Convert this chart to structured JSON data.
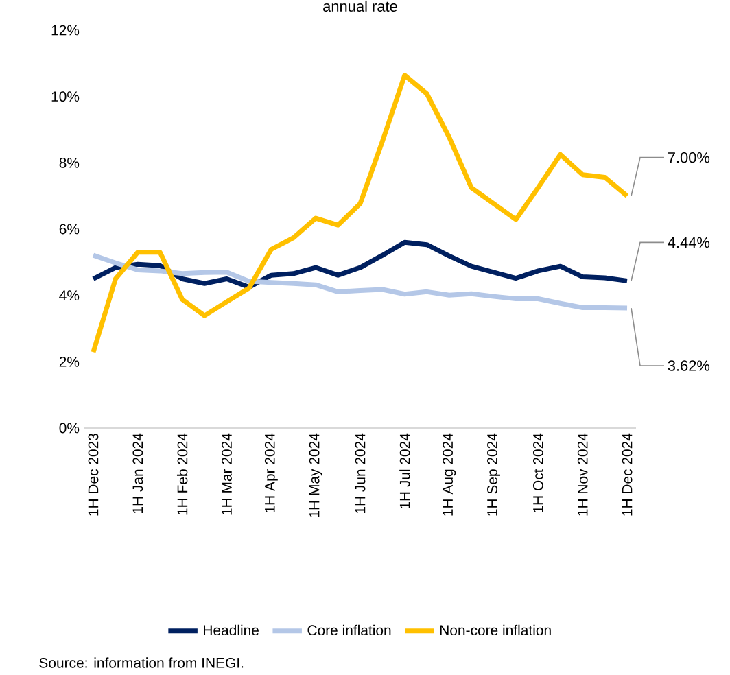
{
  "chart_data": {
    "type": "line",
    "title": "annual rate",
    "categories": [
      "1H Dec 2023",
      null,
      "1H Jan 2024",
      null,
      "1H Feb 2024",
      null,
      "1H Mar 2024",
      null,
      "1H Apr 2024",
      null,
      "1H May 2024",
      null,
      "1H Jun 2024",
      null,
      "1H Jul 2024",
      null,
      "1H Aug 2024",
      null,
      "1H Sep 2024",
      null,
      "1H Oct 2024",
      null,
      "1H Nov 2024",
      null,
      "1H Dec 2024"
    ],
    "series": [
      {
        "name": "Headline",
        "color": "#002060",
        "values": [
          4.5,
          4.84,
          4.94,
          4.9,
          4.5,
          4.36,
          4.5,
          4.25,
          4.61,
          4.66,
          4.84,
          4.61,
          4.84,
          5.21,
          5.6,
          5.53,
          5.19,
          4.88,
          4.7,
          4.52,
          4.74,
          4.88,
          4.56,
          4.53,
          4.44
        ]
      },
      {
        "name": "Core inflation",
        "color": "#b4c7e7",
        "values": [
          5.21,
          4.98,
          4.77,
          4.74,
          4.66,
          4.69,
          4.7,
          4.43,
          4.39,
          4.36,
          4.32,
          4.11,
          4.15,
          4.18,
          4.04,
          4.11,
          4.01,
          4.05,
          3.97,
          3.9,
          3.9,
          3.76,
          3.63,
          3.63,
          3.62
        ]
      },
      {
        "name": "Non-core inflation",
        "color": "#ffc000",
        "values": [
          2.29,
          4.5,
          5.3,
          5.3,
          3.88,
          3.39,
          3.81,
          4.22,
          5.39,
          5.74,
          6.33,
          6.12,
          6.77,
          8.65,
          10.64,
          10.08,
          8.77,
          7.25,
          6.77,
          6.29,
          7.25,
          8.25,
          7.64,
          7.56,
          7.0
        ]
      }
    ],
    "ylim": [
      0,
      12
    ],
    "yticks": [
      {
        "value": 0,
        "label": "0%"
      },
      {
        "value": 2,
        "label": "2%"
      },
      {
        "value": 4,
        "label": "4%"
      },
      {
        "value": 6,
        "label": "6%"
      },
      {
        "value": 8,
        "label": "8%"
      },
      {
        "value": 10,
        "label": "10%"
      },
      {
        "value": 12,
        "label": "12%"
      }
    ],
    "legend": "bottom",
    "marker": "none",
    "line_style": "solid",
    "annotations": [
      "Source: information from INEGI.",
      {
        "text": "7.00%",
        "x": "1H Dec 2024",
        "y": 7.0
      },
      {
        "text": "4.44%",
        "x": "1H Dec 2024",
        "y": 4.44
      },
      {
        "text": "3.62%",
        "x": "1H Dec 2024",
        "y": 3.62
      }
    ]
  }
}
